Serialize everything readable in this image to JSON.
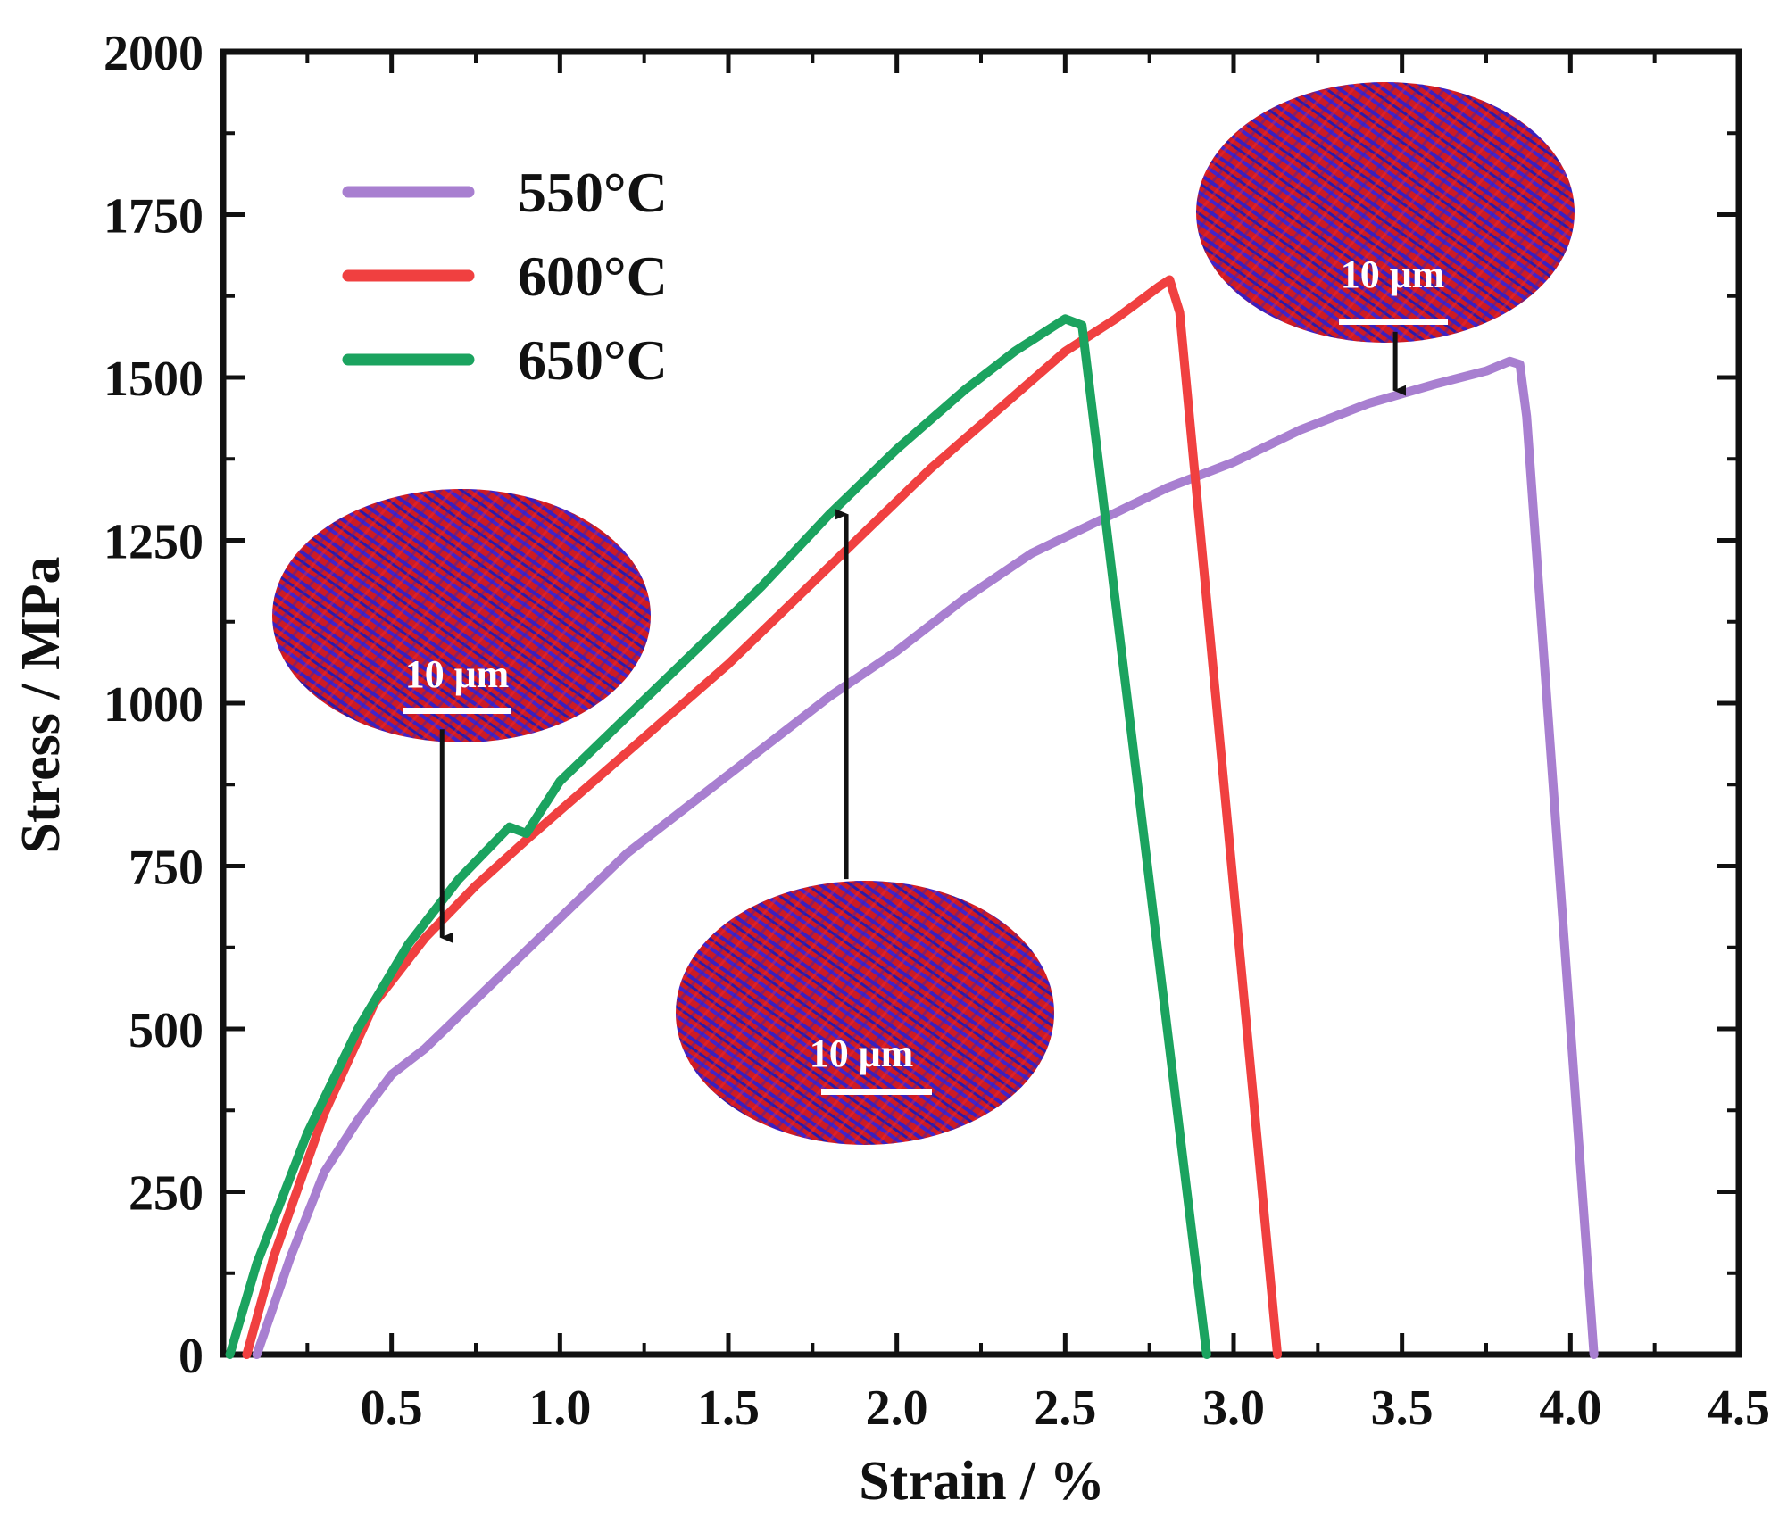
{
  "chart_data": {
    "type": "line",
    "xlabel": "Strain / %",
    "ylabel": "Stress / MPa",
    "xlim": [
      0,
      4.5
    ],
    "ylim": [
      0,
      2000
    ],
    "x_ticks": [
      "0.5",
      "1.0",
      "1.5",
      "2.0",
      "2.5",
      "3.0",
      "3.5",
      "4.0",
      "4.5"
    ],
    "y_ticks": [
      "0",
      "250",
      "500",
      "750",
      "1000",
      "1250",
      "1500",
      "1750",
      "2000"
    ],
    "grid": false,
    "legend_position": "top-left",
    "series": [
      {
        "name": "550°C",
        "color": "#a87fd0",
        "points": [
          [
            0.1,
            0
          ],
          [
            0.2,
            150
          ],
          [
            0.3,
            280
          ],
          [
            0.4,
            360
          ],
          [
            0.5,
            430
          ],
          [
            0.6,
            470
          ],
          [
            0.8,
            570
          ],
          [
            1.0,
            670
          ],
          [
            1.2,
            770
          ],
          [
            1.4,
            850
          ],
          [
            1.6,
            930
          ],
          [
            1.8,
            1010
          ],
          [
            2.0,
            1080
          ],
          [
            2.2,
            1160
          ],
          [
            2.4,
            1230
          ],
          [
            2.6,
            1280
          ],
          [
            2.8,
            1330
          ],
          [
            3.0,
            1370
          ],
          [
            3.2,
            1420
          ],
          [
            3.4,
            1460
          ],
          [
            3.6,
            1490
          ],
          [
            3.75,
            1510
          ],
          [
            3.82,
            1525
          ],
          [
            3.85,
            1520
          ],
          [
            3.87,
            1440
          ],
          [
            4.07,
            0
          ]
        ]
      },
      {
        "name": "600°C",
        "color": "#f04040",
        "points": [
          [
            0.07,
            0
          ],
          [
            0.15,
            150
          ],
          [
            0.3,
            370
          ],
          [
            0.45,
            540
          ],
          [
            0.6,
            640
          ],
          [
            0.75,
            720
          ],
          [
            0.9,
            790
          ],
          [
            1.1,
            880
          ],
          [
            1.3,
            970
          ],
          [
            1.5,
            1060
          ],
          [
            1.7,
            1160
          ],
          [
            1.9,
            1260
          ],
          [
            2.1,
            1360
          ],
          [
            2.3,
            1450
          ],
          [
            2.5,
            1540
          ],
          [
            2.65,
            1590
          ],
          [
            2.78,
            1640
          ],
          [
            2.81,
            1650
          ],
          [
            2.84,
            1600
          ],
          [
            3.13,
            0
          ]
        ]
      },
      {
        "name": "650°C",
        "color": "#1ba35f",
        "points": [
          [
            0.02,
            0
          ],
          [
            0.1,
            140
          ],
          [
            0.25,
            340
          ],
          [
            0.4,
            500
          ],
          [
            0.55,
            630
          ],
          [
            0.7,
            730
          ],
          [
            0.85,
            810
          ],
          [
            0.9,
            800
          ],
          [
            1.0,
            880
          ],
          [
            1.2,
            980
          ],
          [
            1.4,
            1080
          ],
          [
            1.6,
            1180
          ],
          [
            1.8,
            1290
          ],
          [
            2.0,
            1390
          ],
          [
            2.2,
            1480
          ],
          [
            2.35,
            1540
          ],
          [
            2.5,
            1590
          ],
          [
            2.55,
            1580
          ],
          [
            2.92,
            0
          ]
        ]
      }
    ],
    "annotations": [
      {
        "label": "10 μm",
        "arrow_from": [
          0.65,
          960
        ],
        "arrow_to": [
          0.65,
          640
        ]
      },
      {
        "label": "10 μm",
        "arrow_from": [
          1.85,
          730
        ],
        "arrow_to": [
          1.85,
          1290
        ]
      },
      {
        "label": "10 μm",
        "arrow_from": [
          3.48,
          1570
        ],
        "arrow_to": [
          3.48,
          1480
        ]
      }
    ]
  }
}
